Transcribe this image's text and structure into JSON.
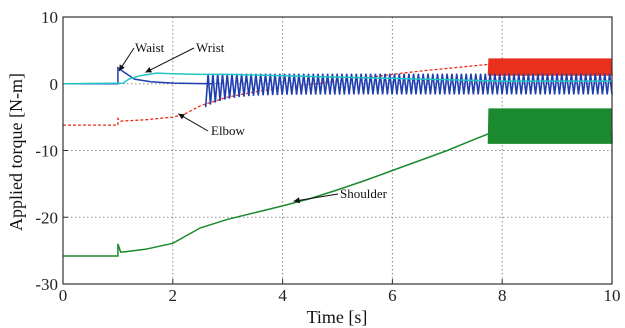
{
  "chart_data": {
    "type": "line",
    "xlabel": "Time [s]",
    "ylabel": "Applied torque [N-m]",
    "xlim": [
      0,
      10
    ],
    "ylim": [
      -30,
      10
    ],
    "xticks": [
      "0",
      "2",
      "4",
      "6",
      "8",
      "10"
    ],
    "yticks": [
      "10",
      "0",
      "-10",
      "-20",
      "-30"
    ],
    "grid": true,
    "annotations": [
      "Waist",
      "Wrist",
      "Elbow",
      "Shoulder"
    ],
    "series": [
      {
        "name": "Shoulder",
        "color": "#1b8a2e",
        "x": [
          0,
          1.0,
          1.0,
          1.05,
          1.1,
          1.5,
          2.0,
          2.5,
          3.0,
          3.5,
          4.0,
          4.5,
          5.0,
          5.5,
          6.0,
          6.5,
          7.0,
          7.5,
          7.75
        ],
        "y": [
          -25.8,
          -25.8,
          -24.0,
          -25.2,
          -25.2,
          -24.8,
          -23.9,
          -21.6,
          -20.3,
          -19.3,
          -18.3,
          -17.2,
          -15.9,
          -14.5,
          -13.0,
          -11.5,
          -10.0,
          -8.3,
          -7.5
        ],
        "oscillation": {
          "x_start": 7.75,
          "x_end": 10,
          "y_min": -9.0,
          "y_max": -3.7
        }
      },
      {
        "name": "Elbow",
        "color": "#e8301c",
        "x": [
          0,
          1.0,
          1.0,
          1.05,
          1.5,
          2.0,
          2.2,
          2.5,
          3.0,
          3.5,
          4.0,
          4.5,
          5.0,
          5.5,
          6.0,
          6.5,
          7.0,
          7.5,
          7.75
        ],
        "y": [
          -6.2,
          -6.2,
          -5.2,
          -5.6,
          -5.4,
          -5.0,
          -4.6,
          -3.3,
          -2.0,
          -1.2,
          -0.6,
          -0.1,
          0.4,
          0.9,
          1.4,
          1.9,
          2.3,
          2.7,
          2.9
        ],
        "oscillation": {
          "x_start": 7.75,
          "x_end": 10,
          "y_min": 1.2,
          "y_max": 3.8
        }
      },
      {
        "name": "Waist",
        "color": "#1f3fb0",
        "x": [
          0,
          1.0,
          1.0,
          1.1,
          1.3,
          1.6,
          2.0,
          2.7
        ],
        "y": [
          0,
          0,
          2.4,
          1.8,
          0.7,
          0.3,
          0.1,
          0.0
        ],
        "oscillation": {
          "x_start": 2.6,
          "x_end": 10,
          "y_min": -1.6,
          "y_max": 1.5,
          "settle_from": -3.5
        }
      },
      {
        "name": "Wrist",
        "color": "#21c4c4",
        "x": [
          0,
          1.1,
          1.2,
          1.4,
          1.7,
          2.0,
          2.5,
          3.0,
          4.0,
          5.0,
          6.0,
          7.0,
          8.0,
          10.0
        ],
        "y": [
          0,
          0.1,
          0.7,
          1.2,
          1.6,
          1.5,
          1.4,
          1.4,
          1.2,
          1.0,
          0.8,
          0.6,
          0.4,
          0.4
        ]
      }
    ]
  }
}
